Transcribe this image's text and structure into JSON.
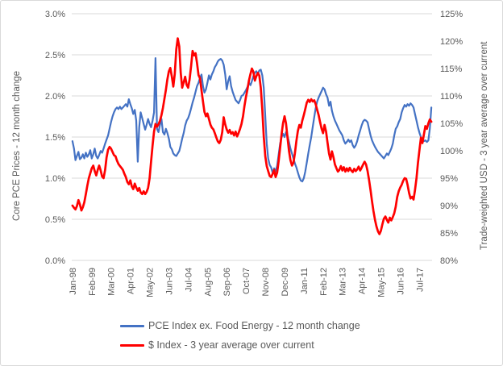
{
  "chart_data": {
    "type": "line",
    "title": "",
    "gridline_color": "#d9d9d9",
    "text_color": "#595959",
    "x_axis": {
      "tick_labels": [
        "Jan-98",
        "Feb-99",
        "Mar-00",
        "Apr-01",
        "May-02",
        "Jun-03",
        "Jul-04",
        "Aug-05",
        "Sep-06",
        "Oct-07",
        "Nov-08",
        "Dec-09",
        "Jan-11",
        "Feb-12",
        "Mar-13",
        "Apr-14",
        "May-15",
        "Jun-16",
        "Jul-17"
      ],
      "tick_month_indices": [
        0,
        13,
        26,
        39,
        52,
        65,
        78,
        91,
        104,
        117,
        130,
        143,
        156,
        169,
        182,
        195,
        208,
        221,
        234
      ],
      "n_points": 243,
      "start": "Jan-98",
      "end": "Mar-18"
    },
    "left_axis": {
      "title": "Core PCE Prices - 12 month change",
      "ticks": [
        "0.0%",
        "0.5%",
        "1.0%",
        "1.5%",
        "2.0%",
        "2.5%",
        "3.0%"
      ],
      "tick_values": [
        0,
        0.5,
        1,
        1.5,
        2,
        2.5,
        3
      ],
      "min": 0,
      "max": 3,
      "grid": true
    },
    "right_axis": {
      "title": "Trade-weighted USD - 3 year average over current",
      "ticks": [
        "80%",
        "85%",
        "90%",
        "95%",
        "100%",
        "105%",
        "110%",
        "115%",
        "120%",
        "125%"
      ],
      "tick_values": [
        80,
        85,
        90,
        95,
        100,
        105,
        110,
        115,
        120,
        125
      ],
      "min": 80,
      "max": 125,
      "grid": false
    },
    "legend_position": "bottom",
    "series": [
      {
        "name": "PCE Index ex. Food Energy - 12 month change",
        "axis": "left",
        "color": "#4472C4",
        "stroke_width": 2.2,
        "values": [
          1.45,
          1.36,
          1.22,
          1.27,
          1.32,
          1.23,
          1.25,
          1.29,
          1.24,
          1.31,
          1.26,
          1.29,
          1.34,
          1.24,
          1.29,
          1.36,
          1.27,
          1.24,
          1.28,
          1.33,
          1.31,
          1.36,
          1.42,
          1.47,
          1.52,
          1.6,
          1.68,
          1.75,
          1.8,
          1.84,
          1.86,
          1.84,
          1.87,
          1.84,
          1.86,
          1.88,
          1.9,
          1.87,
          1.96,
          1.9,
          1.85,
          1.78,
          1.83,
          1.7,
          1.2,
          1.62,
          1.8,
          1.73,
          1.66,
          1.59,
          1.65,
          1.72,
          1.66,
          1.62,
          1.7,
          1.8,
          2.46,
          1.6,
          1.56,
          1.65,
          1.72,
          1.56,
          1.53,
          1.6,
          1.55,
          1.48,
          1.38,
          1.35,
          1.3,
          1.28,
          1.27,
          1.3,
          1.33,
          1.4,
          1.48,
          1.55,
          1.64,
          1.7,
          1.73,
          1.78,
          1.85,
          1.92,
          1.98,
          2.05,
          2.12,
          2.16,
          2.22,
          2.26,
          2.12,
          2.04,
          2.08,
          2.16,
          2.25,
          2.2,
          2.26,
          2.3,
          2.35,
          2.38,
          2.42,
          2.44,
          2.45,
          2.43,
          2.38,
          2.26,
          2.08,
          2.18,
          2.24,
          2.12,
          2.05,
          2.0,
          1.95,
          1.93,
          1.91,
          1.95,
          2.0,
          2.01,
          2.04,
          2.07,
          2.11,
          2.16,
          2.13,
          2.18,
          2.24,
          2.28,
          2.3,
          2.27,
          2.31,
          2.32,
          2.25,
          2.1,
          1.75,
          1.42,
          1.24,
          1.16,
          1.13,
          1.06,
          1.12,
          1.08,
          1.15,
          1.28,
          1.42,
          1.5,
          1.54,
          1.5,
          1.56,
          1.52,
          1.44,
          1.36,
          1.3,
          1.24,
          1.18,
          1.13,
          1.07,
          1.01,
          0.97,
          0.96,
          1.0,
          1.08,
          1.19,
          1.3,
          1.4,
          1.5,
          1.62,
          1.74,
          1.85,
          1.93,
          1.98,
          2.02,
          2.06,
          2.1,
          2.08,
          2.02,
          1.98,
          1.88,
          1.93,
          1.82,
          1.75,
          1.7,
          1.66,
          1.62,
          1.58,
          1.55,
          1.52,
          1.46,
          1.42,
          1.44,
          1.47,
          1.44,
          1.46,
          1.4,
          1.37,
          1.4,
          1.45,
          1.52,
          1.58,
          1.64,
          1.69,
          1.71,
          1.7,
          1.68,
          1.6,
          1.52,
          1.46,
          1.42,
          1.38,
          1.35,
          1.32,
          1.3,
          1.28,
          1.26,
          1.24,
          1.27,
          1.3,
          1.28,
          1.32,
          1.36,
          1.42,
          1.52,
          1.6,
          1.63,
          1.68,
          1.72,
          1.8,
          1.85,
          1.89,
          1.87,
          1.9,
          1.88,
          1.91,
          1.89,
          1.86,
          1.78,
          1.7,
          1.62,
          1.55,
          1.5,
          1.47,
          1.45,
          1.46,
          1.44,
          1.46,
          1.6,
          1.86
        ]
      },
      {
        "name": "$ Index - 3 year average over current",
        "axis": "right",
        "color": "#FF0000",
        "stroke_width": 2.7,
        "values": [
          90.0,
          89.6,
          89.3,
          89.9,
          91.0,
          90.2,
          89.1,
          89.7,
          90.6,
          92.1,
          93.6,
          95.0,
          95.9,
          96.8,
          97.3,
          96.3,
          95.5,
          96.5,
          97.3,
          96.4,
          95.3,
          95.0,
          96.5,
          98.8,
          100.2,
          100.7,
          100.4,
          99.8,
          99.2,
          99.0,
          98.2,
          97.6,
          97.2,
          96.9,
          96.5,
          95.8,
          95.2,
          94.3,
          93.9,
          94.6,
          93.5,
          93.0,
          94.0,
          93.3,
          92.7,
          93.2,
          92.4,
          92.1,
          92.6,
          92.1,
          92.5,
          93.2,
          95.0,
          98.0,
          101.0,
          103.5,
          104.9,
          104.4,
          104.8,
          105.5,
          106.5,
          107.8,
          109.5,
          111.1,
          113.0,
          114.5,
          115.1,
          113.5,
          111.7,
          114.0,
          118.5,
          120.5,
          119.0,
          114.2,
          111.5,
          112.5,
          113.5,
          112.0,
          111.5,
          113.0,
          115.5,
          118.2,
          117.4,
          117.8,
          116.0,
          113.8,
          113.2,
          111.0,
          109.0,
          107.1,
          106.3,
          106.8,
          105.8,
          104.8,
          104.2,
          103.9,
          103.2,
          102.4,
          101.7,
          101.4,
          102.0,
          103.4,
          106.1,
          104.8,
          103.9,
          103.3,
          103.8,
          103.1,
          103.4,
          102.8,
          103.5,
          102.6,
          103.2,
          104.0,
          104.9,
          106.3,
          108.2,
          109.8,
          111.2,
          112.8,
          114.0,
          115.0,
          114.4,
          112.8,
          113.6,
          114.2,
          113.7,
          111.5,
          107.5,
          102.6,
          99.0,
          97.2,
          96.3,
          95.4,
          95.2,
          95.8,
          96.5,
          95.2,
          96.0,
          98.0,
          100.5,
          103.0,
          105.0,
          106.3,
          105.0,
          102.5,
          100.0,
          98.3,
          97.3,
          97.8,
          99.5,
          101.8,
          103.6,
          104.7,
          104.2,
          105.5,
          106.5,
          107.6,
          108.8,
          109.3,
          108.9,
          109.4,
          109.0,
          109.2,
          108.5,
          107.5,
          106.5,
          105.2,
          104.0,
          103.2,
          104.7,
          103.5,
          101.5,
          99.5,
          98.4,
          99.9,
          98.8,
          97.5,
          96.8,
          96.2,
          96.5,
          97.2,
          96.4,
          97.0,
          96.2,
          96.8,
          96.3,
          96.9,
          96.4,
          96.1,
          96.7,
          96.3,
          96.6,
          97.1,
          96.4,
          96.9,
          97.5,
          98.0,
          97.5,
          96.3,
          94.7,
          92.8,
          90.8,
          89.0,
          87.4,
          86.2,
          85.3,
          84.8,
          85.4,
          86.6,
          87.6,
          88.0,
          87.4,
          86.9,
          87.8,
          87.3,
          87.9,
          88.6,
          89.8,
          91.6,
          92.6,
          93.3,
          93.8,
          94.5,
          95.0,
          94.9,
          93.8,
          92.3,
          91.3,
          91.6,
          91.1,
          92.8,
          95.0,
          97.8,
          100.2,
          102.4,
          101.4,
          103.0,
          104.5,
          104.0,
          105.0,
          105.7,
          105.3
        ]
      }
    ]
  }
}
